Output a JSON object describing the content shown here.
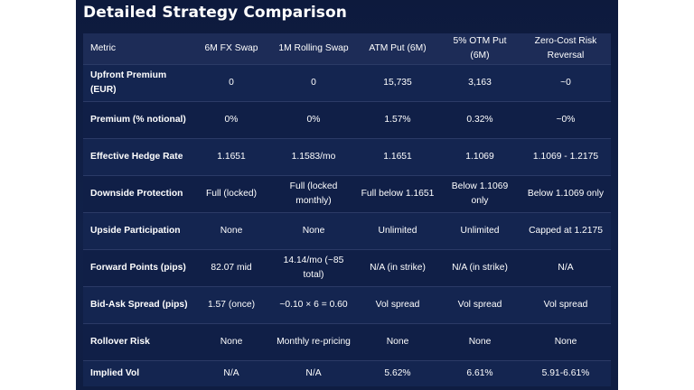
{
  "title": "Detailed Strategy Comparison",
  "columns": [
    "Metric",
    "6M FX Swap",
    "1M Rolling Swap",
    "ATM Put (6M)",
    "5% OTM Put (6M)",
    "Zero-Cost Risk Reversal"
  ],
  "rows": [
    [
      "Upfront Premium (EUR)",
      "0",
      "0",
      "15,735",
      "3,163",
      "~0"
    ],
    [
      "Premium (% notional)",
      "0%",
      "0%",
      "1.57%",
      "0.32%",
      "~0%"
    ],
    [
      "Effective Hedge Rate",
      "1.1651",
      "1.1583/mo",
      "1.1651",
      "1.1069",
      "1.1069 - 1.2175"
    ],
    [
      "Downside Protection",
      "Full (locked)",
      "Full (locked monthly)",
      "Full below 1.1651",
      "Below 1.1069 only",
      "Below 1.1069 only"
    ],
    [
      "Upside Participation",
      "None",
      "None",
      "Unlimited",
      "Unlimited",
      "Capped at 1.2175"
    ],
    [
      "Forward Points (pips)",
      "82.07 mid",
      "14.14/mo (~85 total)",
      "N/A (in strike)",
      "N/A (in strike)",
      "N/A"
    ],
    [
      "Bid-Ask Spread (pips)",
      "1.57 (once)",
      "~0.10 × 6 = 0.60",
      "Vol spread",
      "Vol spread",
      "Vol spread"
    ],
    [
      "Rollover Risk",
      "None",
      "Monthly re-pricing",
      "None",
      "None",
      "None"
    ],
    [
      "Implied Vol",
      "N/A",
      "N/A",
      "5.62%",
      "6.61%",
      "5.91-6.61%"
    ]
  ]
}
